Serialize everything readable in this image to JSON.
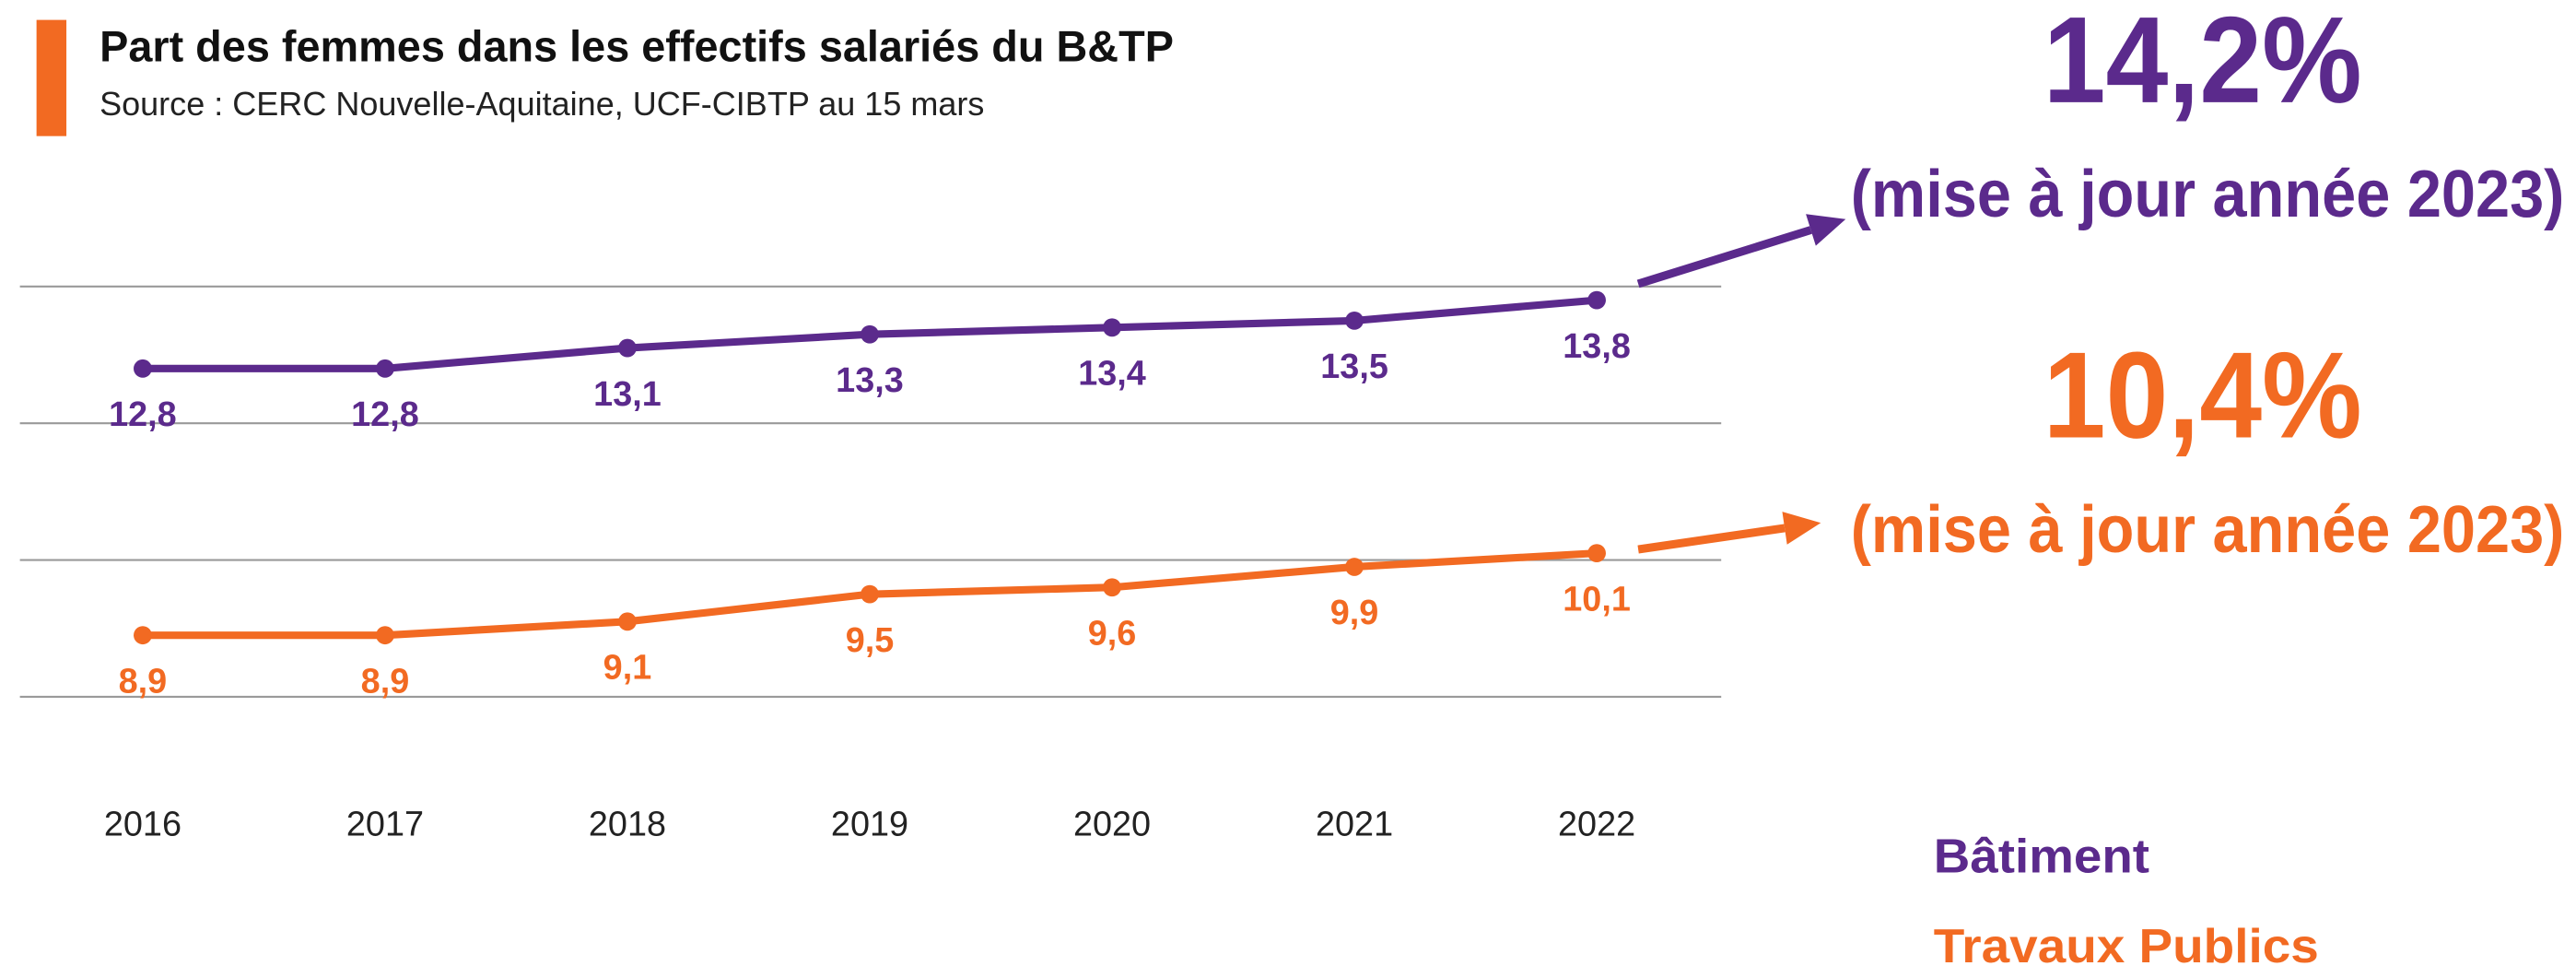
{
  "chart_data": {
    "type": "line",
    "title": "Part des femmes dans les effectifs salariés du B&TP",
    "subtitle": "Source : CERC Nouvelle-Aquitaine,  UCF-CIBTP au 15 mars",
    "categories": [
      "2016",
      "2017",
      "2018",
      "2019",
      "2020",
      "2021",
      "2022"
    ],
    "series": [
      {
        "name": "Bâtiment",
        "color": "#5b2a8c",
        "values": [
          12.8,
          12.8,
          13.1,
          13.3,
          13.4,
          13.5,
          13.8
        ],
        "value_labels": [
          "12,8",
          "12,8",
          "13,1",
          "13,3",
          "13,4",
          "13,5",
          "13,8"
        ]
      },
      {
        "name": "Travaux Publics",
        "color": "#f26a22",
        "values": [
          8.9,
          8.9,
          9.1,
          9.5,
          9.6,
          9.9,
          10.1
        ],
        "value_labels": [
          "8,9",
          "8,9",
          "9,1",
          "9,5",
          "9,6",
          "9,9",
          "10,1"
        ]
      }
    ],
    "annotations": [
      {
        "text": "14,2%",
        "color": "#5b2a8c"
      },
      {
        "text": "(mise à jour année 2023)",
        "color": "#5b2a8c"
      },
      {
        "text": "10,4%",
        "color": "#f26a22"
      },
      {
        "text": "(mise à jour année 2023)",
        "color": "#f26a22"
      }
    ],
    "ylim": [
      7,
      14.5
    ],
    "yticks": [
      8,
      10,
      12,
      14
    ],
    "grid": true,
    "accent_color": "#f26a22"
  }
}
